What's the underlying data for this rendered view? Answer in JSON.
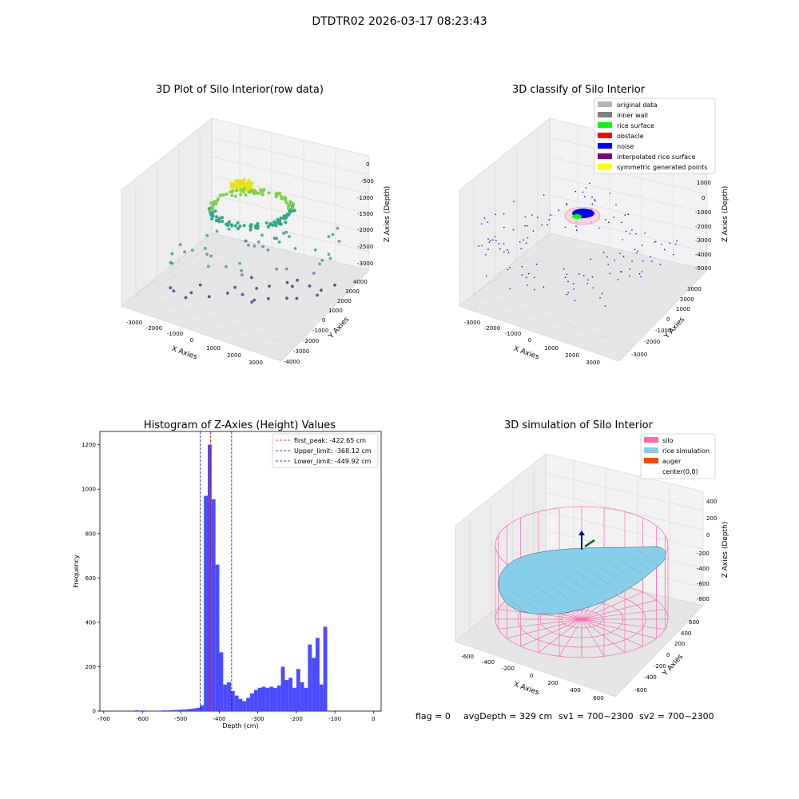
{
  "figure_title": "DTDTR02 2026-03-17 08:23:43",
  "status_line": {
    "flag": "flag = 0",
    "avg_depth": "avgDepth = 329 cm",
    "sv1": "sv1 = 700~2300",
    "sv2": "sv2 = 700~2300"
  },
  "chart_data": [
    {
      "type": "scatter",
      "title": "3D Plot of Silo Interior(row data)",
      "xlabel": "X Axies",
      "ylabel": "Y Axies",
      "zlabel": "Z Axies (Depth)",
      "xlim": [
        -3000,
        3000
      ],
      "ylim": [
        -4000,
        4000
      ],
      "zlim": [
        -3000,
        0
      ],
      "x_ticks": [
        "-3000",
        "-2000",
        "-1000",
        "0",
        "1000",
        "2000",
        "3000"
      ],
      "y_ticks": [
        "-4000",
        "-3000",
        "-2000",
        "-1000",
        "0",
        "1000",
        "2000",
        "3000",
        "4000"
      ],
      "z_ticks": [
        "-3000",
        "-2500",
        "-2000",
        "-1500",
        "-1000",
        "-500",
        "0"
      ],
      "grid": true,
      "colors": {
        "high": "#e6e21a",
        "mid": "#2fa887",
        "low": "#453883"
      }
    },
    {
      "type": "scatter",
      "title": "3D classify of Silo Interior",
      "xlabel": "X Axies",
      "ylabel": "Y Axies",
      "zlabel": "Z Axies (Depth)",
      "xlim": [
        -3000,
        3000
      ],
      "ylim": [
        -3000,
        3000
      ],
      "zlim": [
        -5000,
        2000
      ],
      "x_ticks": [
        "-3000",
        "-2000",
        "-1000",
        "0",
        "1000",
        "2000",
        "3000"
      ],
      "y_ticks": [
        "-3000",
        "-2000",
        "-1000",
        "0",
        "1000",
        "2000",
        "3000"
      ],
      "z_ticks": [
        "-5000",
        "-4000",
        "-3000",
        "-2000",
        "-1000",
        "0",
        "1000",
        "2000"
      ],
      "grid": true,
      "legend_position": "top-right",
      "legend": [
        {
          "name": "original data",
          "color": "#b3b3b3"
        },
        {
          "name": "inner wall",
          "color": "#808080"
        },
        {
          "name": "rice surface",
          "color": "#00ff00"
        },
        {
          "name": "obstacle",
          "color": "#ff0000"
        },
        {
          "name": "noise",
          "color": "#0000ff"
        },
        {
          "name": "interpolated rice surface",
          "color": "#800080"
        },
        {
          "name": "symmetric generated points",
          "color": "#ffff00"
        }
      ]
    },
    {
      "type": "bar",
      "title": "Histogram of Z-Axies (Height) Values",
      "xlabel": "Depth (cm)",
      "ylabel": "Frequency",
      "xlim": [
        -710,
        20
      ],
      "ylim": [
        0,
        1260
      ],
      "x_ticks": [
        -700,
        -600,
        -500,
        -400,
        -300,
        -200,
        -100,
        0
      ],
      "y_ticks": [
        0,
        200,
        400,
        600,
        800,
        1000,
        1200
      ],
      "bin_width": 10,
      "bar_color": "#4b4bff",
      "bins": [
        [
          -700,
          0
        ],
        [
          -690,
          0
        ],
        [
          -680,
          0
        ],
        [
          -670,
          0
        ],
        [
          -660,
          0
        ],
        [
          -650,
          0
        ],
        [
          -640,
          0
        ],
        [
          -630,
          0
        ],
        [
          -620,
          4
        ],
        [
          -610,
          0
        ],
        [
          -600,
          3
        ],
        [
          -590,
          0
        ],
        [
          -580,
          0
        ],
        [
          -570,
          0
        ],
        [
          -560,
          2
        ],
        [
          -550,
          3
        ],
        [
          -540,
          3
        ],
        [
          -530,
          4
        ],
        [
          -520,
          5
        ],
        [
          -510,
          6
        ],
        [
          -500,
          7
        ],
        [
          -490,
          8
        ],
        [
          -480,
          10
        ],
        [
          -470,
          12
        ],
        [
          -460,
          15
        ],
        [
          -450,
          26
        ],
        [
          -440,
          970
        ],
        [
          -430,
          1200
        ],
        [
          -420,
          955
        ],
        [
          -410,
          660
        ],
        [
          -400,
          265
        ],
        [
          -390,
          120
        ],
        [
          -380,
          130
        ],
        [
          -370,
          90
        ],
        [
          -360,
          70
        ],
        [
          -350,
          55
        ],
        [
          -340,
          45
        ],
        [
          -330,
          60
        ],
        [
          -320,
          80
        ],
        [
          -310,
          95
        ],
        [
          -300,
          105
        ],
        [
          -290,
          110
        ],
        [
          -280,
          105
        ],
        [
          -270,
          110
        ],
        [
          -260,
          105
        ],
        [
          -250,
          115
        ],
        [
          -240,
          200
        ],
        [
          -230,
          140
        ],
        [
          -220,
          150
        ],
        [
          -210,
          105
        ],
        [
          -200,
          190
        ],
        [
          -190,
          130
        ],
        [
          -180,
          105
        ],
        [
          -170,
          300
        ],
        [
          -160,
          240
        ],
        [
          -150,
          330
        ],
        [
          -140,
          120
        ],
        [
          -130,
          380
        ]
      ],
      "vlines": [
        {
          "name": "first_peak: -422.65 cm",
          "x": -422.65,
          "color": "#ff0000"
        },
        {
          "name": "Upper_limit: -368.12 cm",
          "x": -368.12,
          "color": "#0000ff"
        },
        {
          "name": "Lower_limit: -449.92 cm",
          "x": -449.92,
          "color": "#0000ff"
        }
      ],
      "legend_position": "top-right"
    },
    {
      "type": "surface",
      "title": "3D simulation of Silo Interior",
      "xlabel": "X Axies",
      "ylabel": "Y Axies",
      "zlabel": "Z Axies (Depth)",
      "xlim": [
        -600,
        600
      ],
      "ylim": [
        -600,
        600
      ],
      "zlim": [
        -900,
        400
      ],
      "x_ticks": [
        "-600",
        "-400",
        "-200",
        "0",
        "200",
        "400",
        "600"
      ],
      "y_ticks": [
        "-600",
        "-400",
        "-200",
        "0",
        "200",
        "400",
        "600"
      ],
      "z_ticks": [
        "-800",
        "-600",
        "-400",
        "-200",
        "0",
        "200",
        "400"
      ],
      "grid": true,
      "legend_position": "top-right",
      "legend": [
        {
          "name": "silo",
          "color": "#ff69b4"
        },
        {
          "name": "rice simulation",
          "color": "#87ceeb"
        },
        {
          "name": "auger",
          "color": "#ff4500"
        },
        {
          "name": "center(0,0)",
          "color": ""
        }
      ]
    }
  ]
}
